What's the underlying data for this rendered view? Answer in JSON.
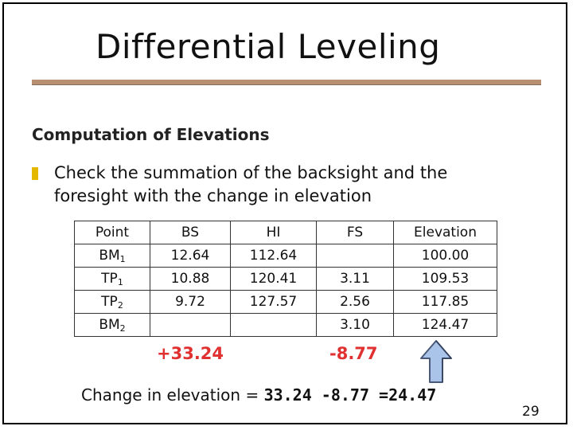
{
  "slide": {
    "title": "Differential Leveling",
    "subtitle": "Computation of Elevations",
    "bullet": "Check the summation of the backsight and the foresight with the change in elevation",
    "table": {
      "headers": [
        "Point",
        "BS",
        "HI",
        "FS",
        "Elevation"
      ],
      "rows": [
        {
          "point": "BM",
          "point_sub": "1",
          "bs": "12.64",
          "hi": "112.64",
          "fs": "",
          "elev": "100.00"
        },
        {
          "point": "TP",
          "point_sub": "1",
          "bs": "10.88",
          "hi": "120.41",
          "fs": "3.11",
          "elev": "109.53"
        },
        {
          "point": "TP",
          "point_sub": "2",
          "bs": "9.72",
          "hi": "127.57",
          "fs": "2.56",
          "elev": "117.85"
        },
        {
          "point": "BM",
          "point_sub": "2",
          "bs": "",
          "hi": "",
          "fs": "3.10",
          "elev": "124.47"
        }
      ]
    },
    "bs_sum": "+33.24",
    "fs_sum": "-8.77",
    "change_label": "Change in elevation =",
    "change_calc": "33.24 -8.77 =24.47",
    "page_number": "29",
    "colors": {
      "accent_rule": "#b98f72",
      "bullet": "#e5b800",
      "sums": "#e03030",
      "arrow": "#a9c4e8"
    }
  }
}
